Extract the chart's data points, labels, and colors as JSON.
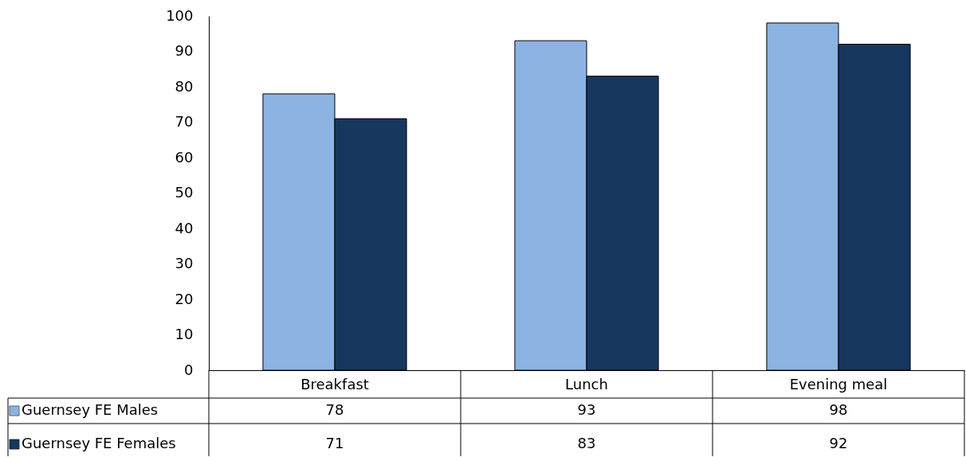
{
  "chart_data": {
    "type": "bar",
    "categories": [
      "Breakfast",
      "Lunch",
      "Evening meal"
    ],
    "series": [
      {
        "name": "Guernsey FE Males",
        "color": "#8db3e2",
        "values": [
          78,
          93,
          98
        ]
      },
      {
        "name": "Guernsey FE Females",
        "color": "#17375e",
        "values": [
          71,
          83,
          92
        ]
      }
    ],
    "ylim": [
      0,
      100
    ],
    "yticks": [
      0,
      10,
      20,
      30,
      40,
      50,
      60,
      70,
      80,
      90,
      100
    ],
    "grid": false,
    "legend": "bottom left",
    "data_labels": true
  }
}
